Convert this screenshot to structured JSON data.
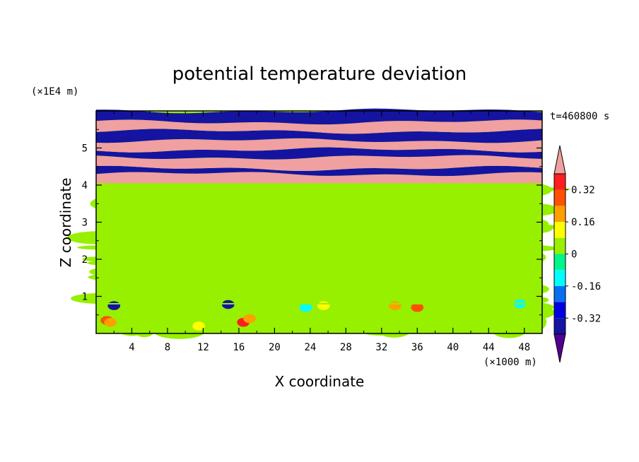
{
  "chart_data": {
    "type": "heatmap",
    "title": "potential temperature deviation",
    "xlabel": "X coordinate",
    "ylabel": "Z coordinate",
    "x_unit": "(×1000 m)",
    "y_unit": "(×1E4 m)",
    "time_label": "t=460800 s",
    "xlim": [
      0,
      50
    ],
    "ylim": [
      0,
      6
    ],
    "x_ticks": [
      4,
      8,
      12,
      16,
      20,
      24,
      28,
      32,
      36,
      40,
      44,
      48
    ],
    "x_tick_labels": [
      "4",
      "8",
      "12",
      "16",
      "20",
      "24",
      "28",
      "32",
      "36",
      "40",
      "44",
      "48"
    ],
    "y_ticks": [
      1,
      2,
      3,
      4,
      5
    ],
    "y_tick_labels": [
      "1",
      "2",
      "3",
      "4",
      "5"
    ],
    "colorbar": {
      "levels": [
        -0.4,
        -0.32,
        -0.24,
        -0.16,
        -0.08,
        0,
        0.08,
        0.16,
        0.24,
        0.32,
        0.4
      ],
      "colors": [
        "#520090",
        "#1414a0",
        "#0000e0",
        "#0a6ef0",
        "#00ffff",
        "#00f58c",
        "#96f000",
        "#ffff00",
        "#ffa000",
        "#ff5000",
        "#ff1e1e",
        "#f0a0a0"
      ],
      "labels": [
        "-0.32",
        "-0.16",
        "0",
        "0.16",
        "0.32"
      ],
      "label_values": [
        -0.32,
        -0.16,
        0,
        0.16,
        0.32
      ]
    },
    "regions": [
      {
        "z_range": [
          0,
          0.8
        ],
        "description_level": "near-zero mixed",
        "base": 0
      },
      {
        "z_range": [
          0.8,
          4.05
        ],
        "description_level": "near-zero",
        "base": 0
      },
      {
        "z_range": [
          4.05,
          6.0
        ],
        "description_level": "alternating bands",
        "values": [
          0.4,
          -0.4
        ]
      }
    ],
    "upper_bands": [
      {
        "z": [
          4.05,
          4.3
        ],
        "value": 0.4
      },
      {
        "z": [
          4.3,
          4.45
        ],
        "value": -0.4
      },
      {
        "z": [
          4.45,
          4.75
        ],
        "value": 0.4
      },
      {
        "z": [
          4.75,
          4.95
        ],
        "value": -0.4
      },
      {
        "z": [
          4.95,
          5.2
        ],
        "value": 0.4
      },
      {
        "z": [
          5.2,
          5.45
        ],
        "value": -0.4
      },
      {
        "z": [
          5.45,
          5.7
        ],
        "value": 0.4
      },
      {
        "z": [
          5.7,
          6.0
        ],
        "value": -0.4
      }
    ]
  }
}
